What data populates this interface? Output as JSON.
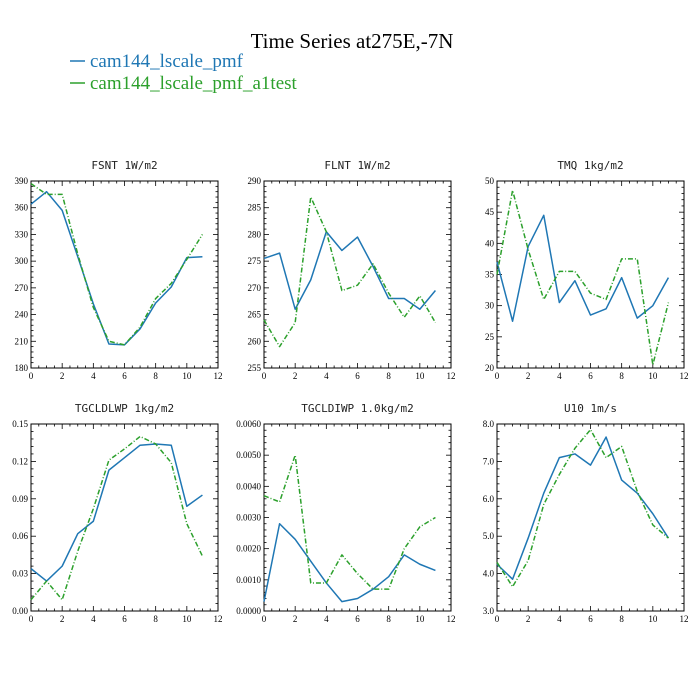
{
  "title": "Time Series at275E,-7N",
  "legend": [
    {
      "label": "cam144_lscale_pmf",
      "color": "#1f77b4",
      "dash": "solid"
    },
    {
      "label": "cam144_lscale_pmf_a1test",
      "color": "#2ca02c",
      "dash": "dashed"
    }
  ],
  "chart_data": [
    {
      "type": "line",
      "title": "FSNT  1W/m2",
      "x": [
        0,
        1,
        2,
        3,
        4,
        5,
        6,
        7,
        8,
        9,
        10,
        11
      ],
      "xlim": [
        0,
        12
      ],
      "xticks": [
        0,
        2,
        4,
        6,
        8,
        10,
        12
      ],
      "ylim": [
        180,
        390
      ],
      "yticks": [
        180,
        210,
        240,
        270,
        300,
        330,
        360,
        390
      ],
      "ytick_labels": [
        "180",
        "210",
        "240",
        "270",
        "300",
        "330",
        "360",
        "390"
      ],
      "series": [
        {
          "name": "cam144_lscale_pmf",
          "values": [
            364,
            378,
            357,
            305,
            252,
            207,
            206,
            224,
            253,
            271,
            304,
            305
          ]
        },
        {
          "name": "cam144_lscale_pmf_a1test",
          "values": [
            387,
            375,
            375,
            308,
            248,
            210,
            206,
            226,
            258,
            275,
            302,
            330
          ]
        }
      ]
    },
    {
      "type": "line",
      "title": "FLNT  1W/m2",
      "x": [
        0,
        1,
        2,
        3,
        4,
        5,
        6,
        7,
        8,
        9,
        10,
        11
      ],
      "xlim": [
        0,
        12
      ],
      "xticks": [
        0,
        2,
        4,
        6,
        8,
        10,
        12
      ],
      "ylim": [
        255,
        290
      ],
      "yticks": [
        255,
        260,
        265,
        270,
        275,
        280,
        285,
        290
      ],
      "ytick_labels": [
        "255",
        "260",
        "265",
        "270",
        "275",
        "280",
        "285",
        "290"
      ],
      "series": [
        {
          "name": "cam144_lscale_pmf",
          "values": [
            275.5,
            276.5,
            266.0,
            271.5,
            280.5,
            277.0,
            279.5,
            274.0,
            268.0,
            268.0,
            266.0,
            269.5
          ]
        },
        {
          "name": "cam144_lscale_pmf_a1test",
          "values": [
            264.0,
            259.0,
            263.5,
            287.0,
            280.5,
            269.5,
            270.5,
            274.5,
            269.0,
            264.5,
            268.5,
            263.5
          ]
        }
      ]
    },
    {
      "type": "line",
      "title": "TMQ  1kg/m2",
      "x": [
        0,
        1,
        2,
        3,
        4,
        5,
        6,
        7,
        8,
        9,
        10,
        11
      ],
      "xlim": [
        0,
        12
      ],
      "xticks": [
        0,
        2,
        4,
        6,
        8,
        10,
        12
      ],
      "ylim": [
        20,
        50
      ],
      "yticks": [
        20,
        25,
        30,
        35,
        40,
        45,
        50
      ],
      "ytick_labels": [
        "20",
        "25",
        "30",
        "35",
        "40",
        "45",
        "50"
      ],
      "series": [
        {
          "name": "cam144_lscale_pmf",
          "values": [
            37.0,
            27.5,
            39.5,
            44.5,
            30.5,
            34.0,
            28.5,
            29.5,
            34.5,
            28.0,
            30.0,
            34.5
          ]
        },
        {
          "name": "cam144_lscale_pmf_a1test",
          "values": [
            35.0,
            48.5,
            39.0,
            31.0,
            35.5,
            35.5,
            32.0,
            31.0,
            37.5,
            37.5,
            20.5,
            30.5
          ]
        }
      ]
    },
    {
      "type": "line",
      "title": "TGCLDLWP  1kg/m2",
      "x": [
        0,
        1,
        2,
        3,
        4,
        5,
        6,
        7,
        8,
        9,
        10,
        11
      ],
      "xlim": [
        0,
        12
      ],
      "xticks": [
        0,
        2,
        4,
        6,
        8,
        10,
        12
      ],
      "ylim": [
        0,
        0.15
      ],
      "yticks": [
        0,
        0.03,
        0.06,
        0.09,
        0.12,
        0.15
      ],
      "ytick_labels": [
        "0.00",
        "0.03",
        "0.06",
        "0.09",
        "0.12",
        "0.15"
      ],
      "series": [
        {
          "name": "cam144_lscale_pmf",
          "values": [
            0.034,
            0.024,
            0.036,
            0.062,
            0.072,
            0.113,
            0.123,
            0.133,
            0.134,
            0.133,
            0.084,
            0.093
          ]
        },
        {
          "name": "cam144_lscale_pmf_a1test",
          "values": [
            0.009,
            0.024,
            0.009,
            0.048,
            0.082,
            0.121,
            0.13,
            0.14,
            0.134,
            0.119,
            0.07,
            0.044
          ]
        }
      ]
    },
    {
      "type": "line",
      "title": "TGCLDIWP  1.0kg/m2",
      "x": [
        0,
        1,
        2,
        3,
        4,
        5,
        6,
        7,
        8,
        9,
        10,
        11
      ],
      "xlim": [
        0,
        12
      ],
      "xticks": [
        0,
        2,
        4,
        6,
        8,
        10,
        12
      ],
      "ylim": [
        0,
        0.006
      ],
      "yticks": [
        0,
        0.001,
        0.002,
        0.003,
        0.004,
        0.005,
        0.006
      ],
      "ytick_labels": [
        "0.0000",
        "0.0010",
        "0.0020",
        "0.0030",
        "0.0040",
        "0.0050",
        "0.0060"
      ],
      "series": [
        {
          "name": "cam144_lscale_pmf",
          "values": [
            0.0003,
            0.0028,
            0.0023,
            0.0016,
            0.0009,
            0.0003,
            0.0004,
            0.0007,
            0.0011,
            0.0018,
            0.0015,
            0.0013
          ]
        },
        {
          "name": "cam144_lscale_pmf_a1test",
          "values": [
            0.0037,
            0.0035,
            0.005,
            0.0009,
            0.0009,
            0.0018,
            0.0012,
            0.0007,
            0.0007,
            0.002,
            0.0027,
            0.003
          ]
        }
      ]
    },
    {
      "type": "line",
      "title": "U10  1m/s",
      "x": [
        0,
        1,
        2,
        3,
        4,
        5,
        6,
        7,
        8,
        9,
        10,
        11
      ],
      "xlim": [
        0,
        12
      ],
      "xticks": [
        0,
        2,
        4,
        6,
        8,
        10,
        12
      ],
      "ylim": [
        3.0,
        8.0
      ],
      "yticks": [
        3,
        4,
        5,
        6,
        7,
        8
      ],
      "ytick_labels": [
        "3.0",
        "4.0",
        "5.0",
        "6.0",
        "7.0",
        "8.0"
      ],
      "series": [
        {
          "name": "cam144_lscale_pmf",
          "values": [
            4.25,
            3.85,
            4.95,
            6.15,
            7.1,
            7.2,
            6.9,
            7.65,
            6.5,
            6.15,
            5.6,
            4.95
          ]
        },
        {
          "name": "cam144_lscale_pmf_a1test",
          "values": [
            4.3,
            3.65,
            4.35,
            5.85,
            6.65,
            7.35,
            7.85,
            7.1,
            7.4,
            6.2,
            5.3,
            4.95
          ]
        }
      ]
    }
  ]
}
